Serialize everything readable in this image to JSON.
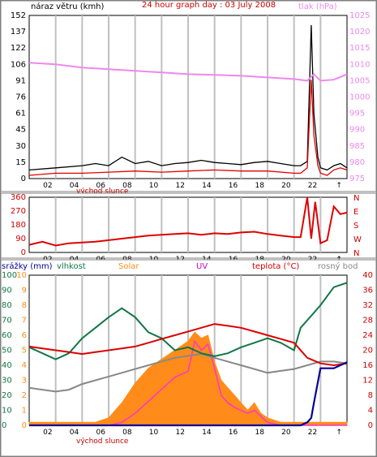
{
  "charts": {
    "top": {
      "title": "24 hour graph day : 03 July 2008",
      "left_label": "náraz větru (kmh)",
      "right_label": "tlak (hPa)",
      "x_ticks": [
        "02",
        "04",
        "06",
        "08",
        "10",
        "12",
        "14",
        "16",
        "18",
        "20",
        "22",
        "↑"
      ],
      "sunrise_label": "východ slunce",
      "y_left_ticks": [
        "0",
        "15",
        "30",
        "45",
        "61",
        "76",
        "91",
        "106",
        "122",
        "137",
        "152"
      ],
      "y_right_ticks": [
        "975",
        "980",
        "985",
        "990",
        "995",
        "1000",
        "1005",
        "1010",
        "1015",
        "1020",
        "1025"
      ]
    },
    "mid": {
      "y_left_ticks": [
        "0",
        "90",
        "180",
        "270",
        "360"
      ],
      "y_right_ticks": [
        "N",
        "W",
        "S",
        "E",
        "N"
      ],
      "x_ticks": [
        "02",
        "04",
        "06",
        "08",
        "10",
        "12",
        "14",
        "16",
        "18",
        "20",
        "22",
        "↑"
      ],
      "sunrise_label": "východ slunce"
    },
    "bottom": {
      "legend": {
        "rain": "srážky (mm)",
        "humidity": "vlhkost",
        "solar": "Solar",
        "uv": "UV",
        "temp": "teplota (°C)",
        "dew": "rosný bod"
      },
      "y_left_ticks": [
        "0",
        "10",
        "20",
        "30",
        "40",
        "50",
        "60",
        "70",
        "80",
        "90",
        "100"
      ],
      "y_left_inner_ticks": [
        "0",
        "1",
        "2",
        "3",
        "4",
        "5",
        "6",
        "7",
        "8",
        "9",
        "10"
      ],
      "y_right_ticks": [
        "0",
        "4",
        "8",
        "12",
        "16",
        "20",
        "24",
        "28",
        "32",
        "36",
        "40"
      ],
      "x_ticks": [
        "02",
        "04",
        "06",
        "08",
        "10",
        "12",
        "14",
        "16",
        "18",
        "20",
        "22",
        "↑"
      ],
      "sunrise_label": "východ slunce"
    }
  },
  "colors": {
    "gust": "#000000",
    "wind": "#e00000",
    "pressure": "#ee88ee",
    "direction": "#e00000",
    "humidity": "#117744",
    "solar": "#ff8c1a",
    "uv": "#ff33cc",
    "temp": "#dd0000",
    "dew": "#888888",
    "rain": "#000099",
    "grid": "#c0c0c0",
    "cyan_axis": "#009999"
  },
  "chart_data": [
    {
      "type": "line",
      "title": "24 hour graph day : 03 July 2008",
      "ylabel": "náraz větru (kmh)",
      "y2label": "tlak (hPa)",
      "xlim": [
        0,
        24
      ],
      "ylim": [
        0,
        152
      ],
      "y2lim": [
        975,
        1025
      ],
      "series": [
        {
          "name": "náraz větru (kmh)",
          "axis": "left",
          "x": [
            0,
            2,
            4,
            5,
            6,
            7,
            8,
            9,
            10,
            11,
            12,
            13,
            14,
            15,
            16,
            17,
            18,
            19,
            20,
            20.5,
            21,
            21.3,
            21.5,
            21.8,
            22,
            22.5,
            23,
            23.5,
            24
          ],
          "values": [
            8,
            10,
            12,
            14,
            12,
            20,
            14,
            16,
            12,
            14,
            15,
            17,
            15,
            14,
            13,
            15,
            16,
            14,
            12,
            12,
            16,
            143,
            60,
            20,
            10,
            8,
            12,
            14,
            10
          ]
        },
        {
          "name": "wind",
          "axis": "left",
          "x": [
            0,
            2,
            4,
            6,
            8,
            10,
            12,
            14,
            16,
            18,
            20,
            20.5,
            21,
            21.3,
            21.5,
            21.8,
            22,
            22.5,
            23,
            23.5,
            24
          ],
          "values": [
            3,
            5,
            5,
            6,
            7,
            6,
            7,
            8,
            7,
            7,
            5,
            5,
            10,
            92,
            40,
            12,
            5,
            3,
            8,
            10,
            8
          ]
        },
        {
          "name": "tlak (hPa)",
          "axis": "right",
          "x": [
            0,
            2,
            4,
            6,
            8,
            10,
            12,
            14,
            16,
            18,
            20,
            21,
            21.5,
            22,
            23,
            24
          ],
          "values": [
            1010.5,
            1010,
            1009,
            1008.5,
            1008,
            1007.5,
            1007,
            1006.8,
            1006.5,
            1006,
            1005.5,
            1005,
            1007,
            1005,
            1005.3,
            1007
          ]
        }
      ]
    },
    {
      "type": "line",
      "title": "",
      "ylabel": "",
      "xlim": [
        0,
        24
      ],
      "ylim": [
        0,
        360
      ],
      "series": [
        {
          "name": "wind direction",
          "x": [
            0,
            1,
            2,
            3,
            4,
            5,
            6,
            7,
            8,
            9,
            10,
            11,
            12,
            13,
            14,
            15,
            16,
            17,
            18,
            19,
            20,
            20.5,
            21,
            21.3,
            21.6,
            22,
            22.5,
            23,
            23.5,
            24
          ],
          "values": [
            50,
            70,
            45,
            60,
            65,
            70,
            80,
            90,
            100,
            110,
            115,
            120,
            125,
            115,
            125,
            120,
            130,
            135,
            120,
            110,
            100,
            100,
            360,
            90,
            330,
            60,
            80,
            300,
            250,
            260
          ]
        }
      ]
    },
    {
      "type": "area",
      "title": "",
      "ylabel": "srážky (mm)",
      "y2label": "teplota (°C)",
      "xlim": [
        0,
        24
      ],
      "ylim": [
        0,
        100
      ],
      "y2lim": [
        0,
        40
      ],
      "series": [
        {
          "name": "vlhkost",
          "axis": "left",
          "x": [
            0,
            1,
            2,
            3,
            4,
            5,
            6,
            7,
            8,
            9,
            10,
            11,
            12,
            13,
            14,
            15,
            16,
            17,
            18,
            19,
            20,
            20.5,
            21,
            21.5,
            22,
            23,
            24
          ],
          "values": [
            52,
            48,
            44,
            48,
            58,
            65,
            72,
            78,
            72,
            62,
            58,
            50,
            52,
            48,
            46,
            48,
            52,
            55,
            58,
            55,
            50,
            65,
            70,
            75,
            80,
            92,
            95
          ]
        },
        {
          "name": "Solar",
          "axis": "left",
          "x": [
            0,
            5,
            6,
            7,
            8,
            9,
            10,
            11,
            12,
            12.5,
            13,
            13.5,
            14,
            14.5,
            15,
            15.5,
            16,
            16.5,
            17,
            17.5,
            18,
            19,
            20,
            24
          ],
          "values": [
            2,
            2,
            5,
            15,
            28,
            38,
            44,
            50,
            56,
            62,
            58,
            60,
            42,
            30,
            25,
            20,
            15,
            10,
            15,
            8,
            5,
            2,
            2,
            2
          ]
        },
        {
          "name": "UV",
          "axis": "left",
          "x": [
            0,
            5,
            6,
            7,
            8,
            9,
            10,
            11,
            12,
            12.5,
            13,
            13.5,
            14,
            14.5,
            15,
            15.5,
            16,
            16.5,
            17,
            17.5,
            18,
            19,
            20,
            24
          ],
          "values": [
            0,
            0,
            0,
            2,
            8,
            16,
            24,
            32,
            36,
            56,
            50,
            54,
            38,
            20,
            15,
            12,
            10,
            8,
            10,
            6,
            2,
            0,
            0,
            0
          ]
        },
        {
          "name": "teplota (°C)",
          "axis": "right",
          "x": [
            0,
            1,
            2,
            3,
            4,
            5,
            6,
            7,
            8,
            9,
            10,
            11,
            12,
            13,
            14,
            15,
            16,
            17,
            18,
            19,
            20,
            21,
            22,
            23,
            24
          ],
          "values": [
            21,
            20.5,
            20,
            19.5,
            19,
            19.5,
            20,
            20.5,
            21,
            22,
            23,
            24,
            25,
            26,
            27,
            26.5,
            26,
            25,
            24,
            23,
            22,
            18,
            16.5,
            16,
            16.5
          ]
        },
        {
          "name": "rosný bod",
          "axis": "right",
          "x": [
            0,
            1,
            2,
            3,
            4,
            5,
            6,
            7,
            8,
            9,
            10,
            11,
            12,
            13,
            14,
            15,
            16,
            17,
            18,
            19,
            20,
            21,
            22,
            23,
            24
          ],
          "values": [
            10,
            9.5,
            9,
            9.5,
            11,
            12,
            13,
            14,
            15,
            16,
            17,
            18,
            18.5,
            19,
            18,
            17,
            16,
            15,
            14,
            14.5,
            15,
            16,
            17,
            17,
            16.5
          ]
        },
        {
          "name": "srážky (mm)",
          "axis": "left",
          "x": [
            0,
            20,
            20.5,
            21,
            21.3,
            21.5,
            22,
            23,
            24
          ],
          "values": [
            0,
            0,
            0,
            0.2,
            0.5,
            1.5,
            3.8,
            3.8,
            4.2
          ]
        }
      ]
    }
  ]
}
